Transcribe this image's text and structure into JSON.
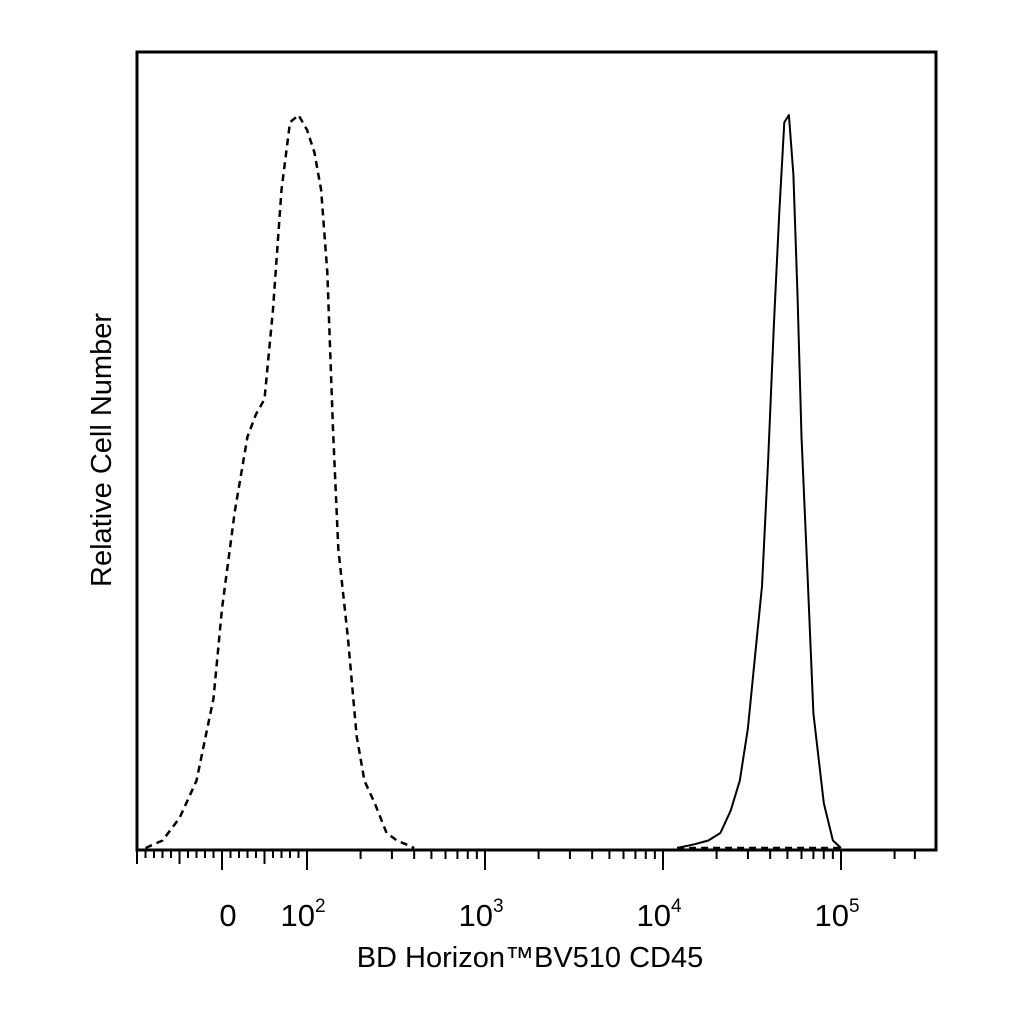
{
  "chart_data": {
    "type": "area",
    "xlabel": "BD Horizon™BV510 CD45",
    "ylabel": "Relative Cell Number",
    "x_scale": "biexponential",
    "xlim": [
      -150,
      260000
    ],
    "ylim": [
      0,
      100
    ],
    "grid": false,
    "legend": "none",
    "x_tick_labels": [
      {
        "value": 0,
        "base": "0",
        "exp": ""
      },
      {
        "value": 100,
        "base": "10",
        "exp": "2"
      },
      {
        "value": 1000,
        "base": "10",
        "exp": "3"
      },
      {
        "value": 10000,
        "base": "10",
        "exp": "4"
      },
      {
        "value": 100000,
        "base": "10",
        "exp": "5"
      }
    ],
    "series": [
      {
        "style": "dashed",
        "x": [
          -90,
          -70,
          -50,
          -30,
          -10,
          0,
          15,
          30,
          40,
          50,
          60,
          70,
          80,
          90,
          100,
          110,
          120,
          130,
          140,
          150,
          170,
          190,
          210,
          240,
          280,
          320,
          360,
          400
        ],
        "y": [
          0,
          1,
          4,
          9,
          20,
          32,
          45,
          55,
          58,
          60,
          72,
          88,
          97,
          98,
          96,
          93,
          88,
          77,
          56,
          40,
          28,
          15,
          9,
          6,
          2,
          1,
          0.5,
          0
        ]
      },
      {
        "style": "solid",
        "x": [
          12000,
          15000,
          18000,
          21000,
          24000,
          27000,
          30000,
          33000,
          36000,
          39000,
          42000,
          45000,
          48000,
          51000,
          54000,
          57000,
          60000,
          65000,
          70000,
          80000,
          90000,
          100000
        ],
        "y": [
          0,
          0.5,
          1,
          2,
          5,
          9,
          16,
          26,
          35,
          52,
          70,
          85,
          97,
          98,
          90,
          74,
          55,
          36,
          18,
          6,
          1,
          0
        ]
      }
    ]
  }
}
